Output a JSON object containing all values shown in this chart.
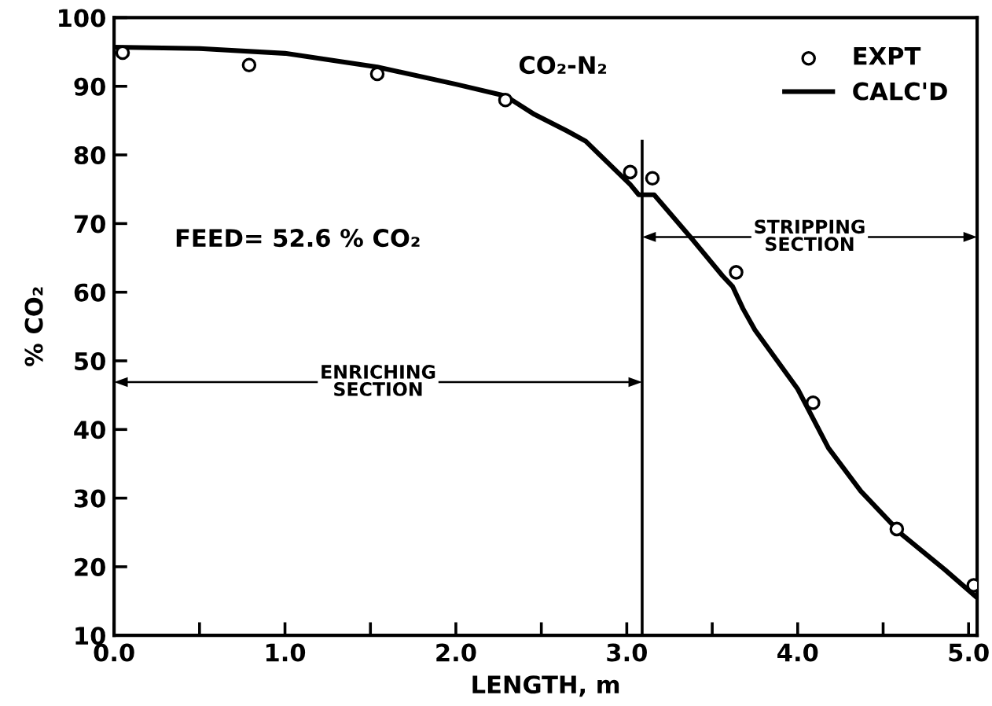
{
  "chart_data": {
    "type": "line",
    "xlabel": "LENGTH, m",
    "ylabel": "% CO₂",
    "annotations": [
      "CO₂-N₂",
      "FEED= 52.6 % CO₂",
      "ENRICHING\nSECTION",
      "STRIPPING\nSECTION"
    ],
    "series": [
      {
        "name": "EXPT",
        "type": "scatter",
        "marker": "circle",
        "color": "#000000",
        "x": [
          0.05,
          0.79,
          1.54,
          2.29,
          3.02,
          3.15,
          3.64,
          4.09,
          4.58,
          5.03
        ],
        "values": [
          94.9,
          93.1,
          91.8,
          88.0,
          77.5,
          76.6,
          62.9,
          43.9,
          25.5,
          17.3
        ]
      },
      {
        "name": "CALC'D",
        "marker": "none",
        "line_style": "solid",
        "color": "#000000",
        "x": [
          0.0,
          0.5,
          1.0,
          1.54,
          2.0,
          2.29,
          2.46,
          2.65,
          2.76,
          3.02,
          3.07,
          3.16,
          3.38,
          3.56,
          3.62,
          3.68,
          3.75,
          4.0,
          4.18,
          4.37,
          4.61,
          4.86,
          5.04
        ],
        "values": [
          95.7,
          95.5,
          94.8,
          92.8,
          90.3,
          88.6,
          85.9,
          83.5,
          82.0,
          75.7,
          74.2,
          74.2,
          67.8,
          62.4,
          60.8,
          57.6,
          54.5,
          45.9,
          37.3,
          31.0,
          24.7,
          19.6,
          15.7
        ]
      }
    ],
    "ref_lines": [
      {
        "axis": "x",
        "value": 3.09,
        "color": "#000000",
        "line_style": "solid"
      }
    ],
    "xlim": [
      0.0,
      5.05
    ],
    "ylim": [
      10,
      100
    ],
    "xticks": [
      {
        "value": 0,
        "label": "0.0"
      },
      {
        "value": 0.5,
        "label": null
      },
      {
        "value": 1,
        "label": "1.0"
      },
      {
        "value": 1.5,
        "label": null
      },
      {
        "value": 2,
        "label": "2.0"
      },
      {
        "value": 2.5,
        "label": null
      },
      {
        "value": 3,
        "label": "3.0"
      },
      {
        "value": 3.5,
        "label": null
      },
      {
        "value": 4,
        "label": "4.0"
      },
      {
        "value": 4.5,
        "label": null
      },
      {
        "value": 5,
        "label": "5.0"
      }
    ],
    "yticks": [
      10,
      20,
      30,
      40,
      50,
      60,
      70,
      80,
      90,
      100
    ],
    "grid": false,
    "legend": "top right"
  }
}
